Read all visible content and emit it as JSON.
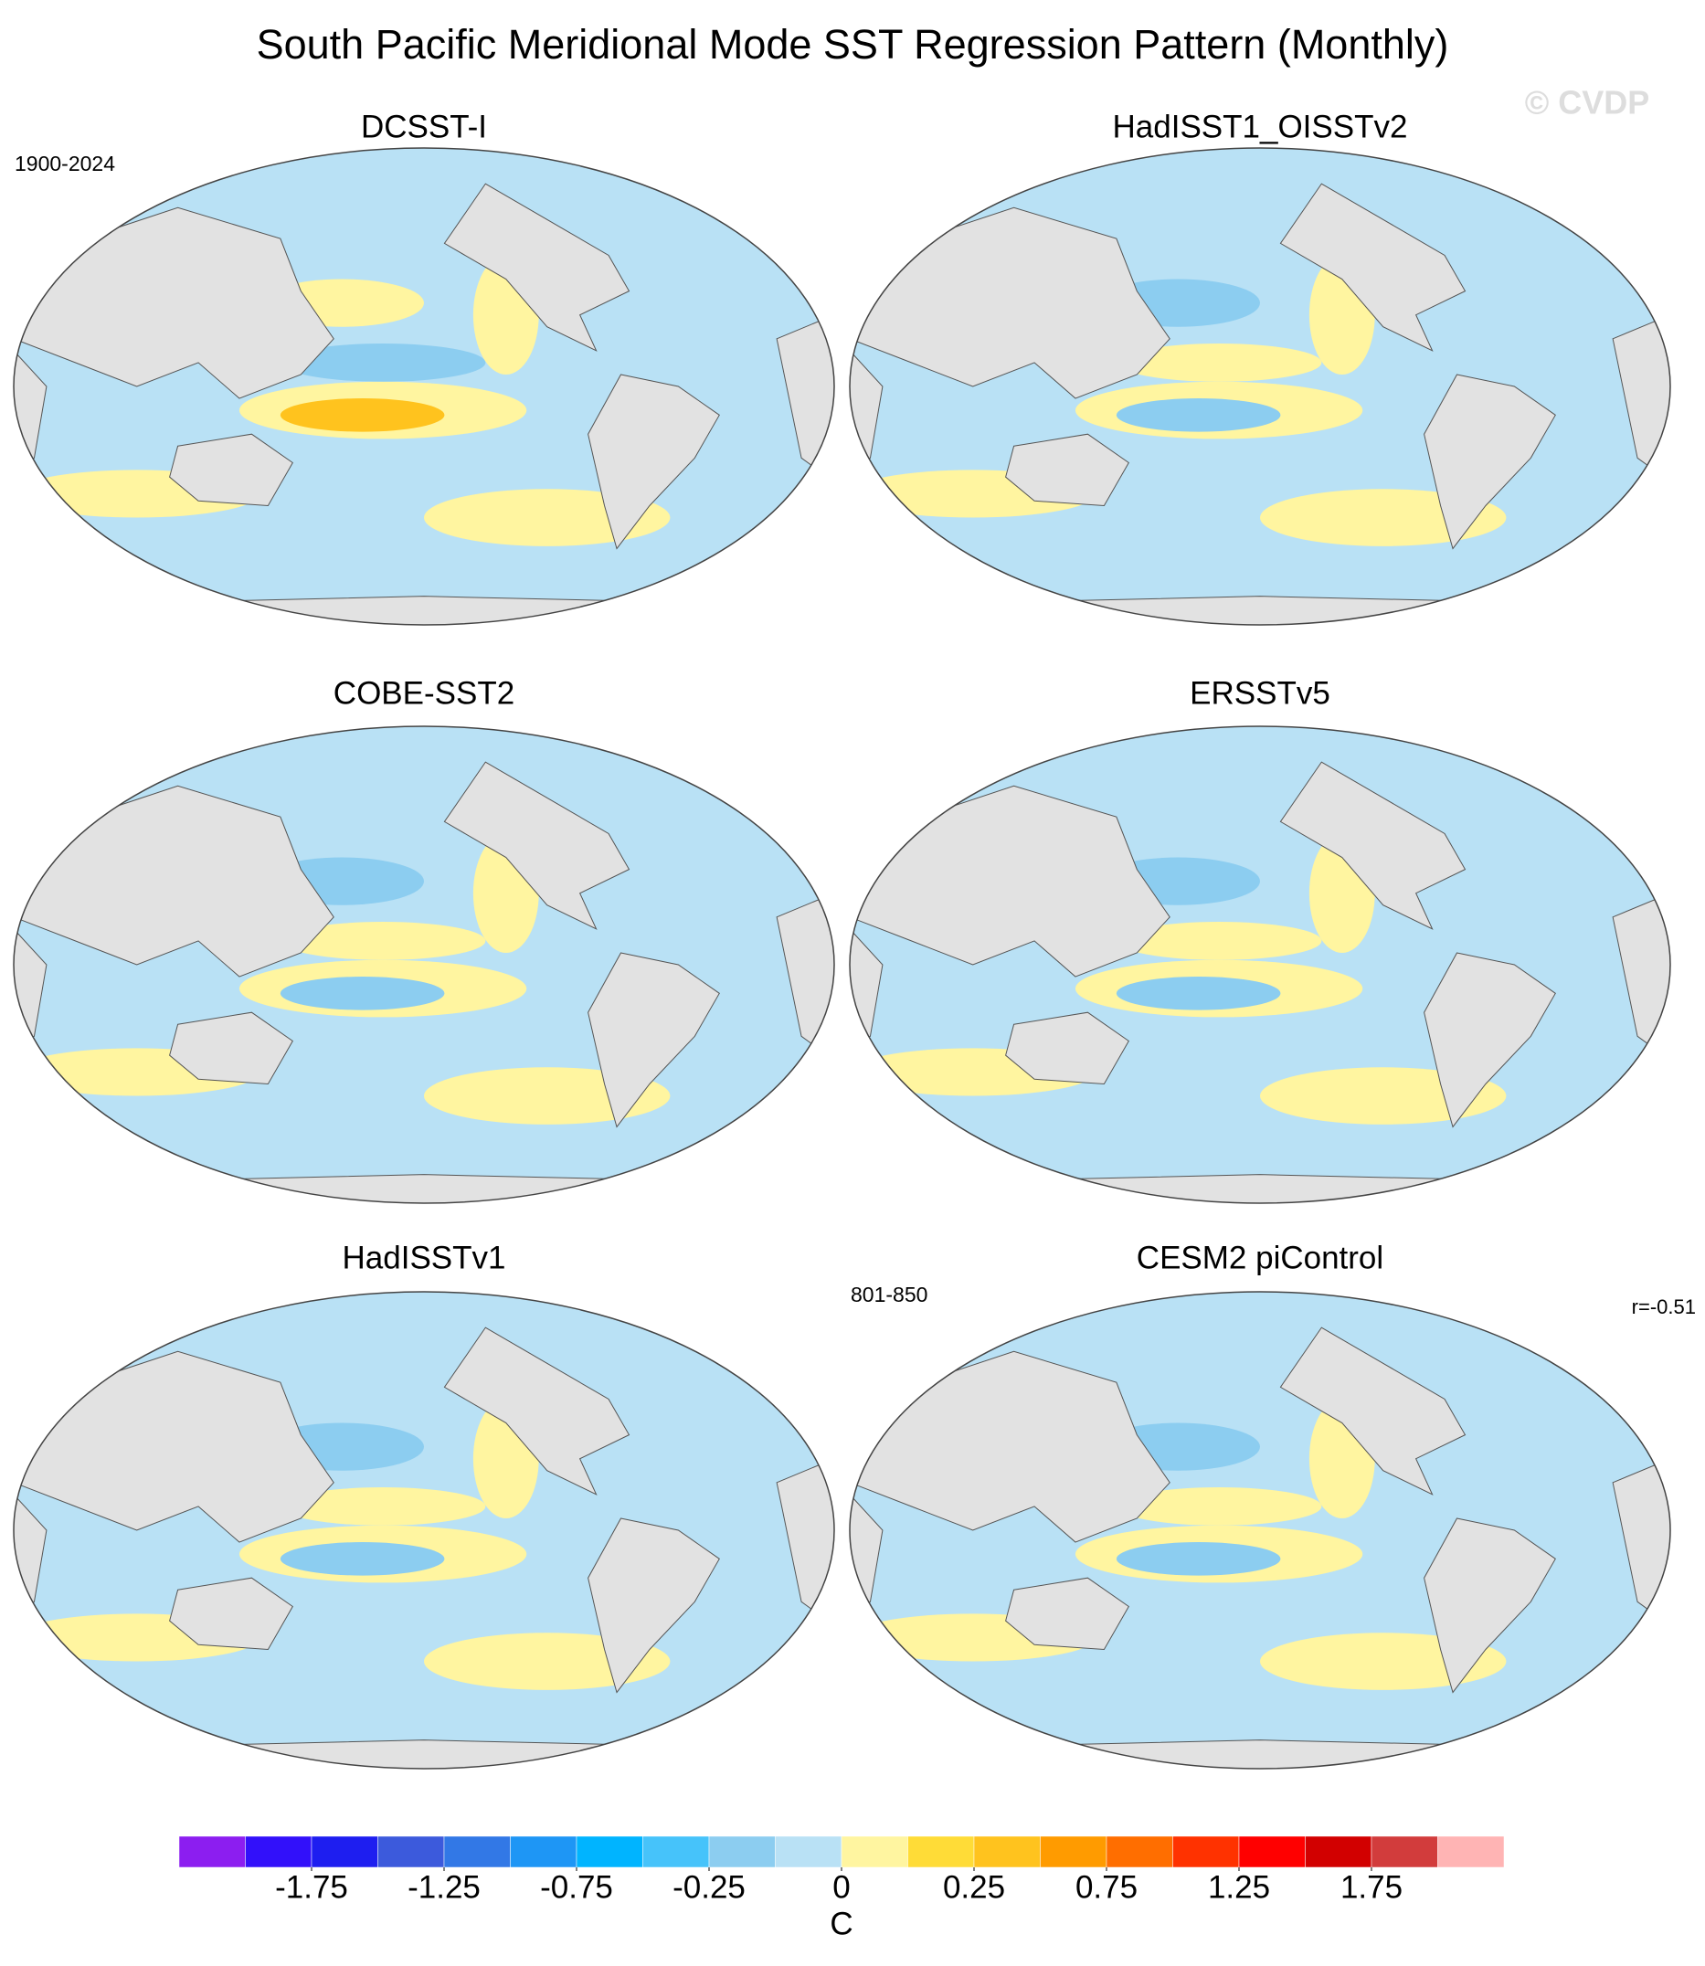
{
  "title": "South Pacific Meridional Mode SST Regression Pattern (Monthly)",
  "watermark": "© CVDP",
  "panels": [
    {
      "title": "DCSST-I",
      "left_note": "1900-2024"
    },
    {
      "title": "HadISST1_OISSTv2"
    },
    {
      "title": "COBE-SST2"
    },
    {
      "title": "ERSSTv5"
    },
    {
      "title": "HadISSTv1"
    },
    {
      "title": "CESM2 piControl",
      "left_note": "801-850",
      "right_note": "r=-0.51"
    }
  ],
  "colorbar": {
    "colors": [
      "#8c1ef0",
      "#3210fa",
      "#1e1ef0",
      "#3c5adc",
      "#3278e6",
      "#1e96f5",
      "#00b4ff",
      "#46c3fa",
      "#8ccdf0",
      "#b9e1f5",
      "#fff5a0",
      "#ffdc37",
      "#ffc31e",
      "#ff9b00",
      "#ff6e00",
      "#ff3200",
      "#ff0000",
      "#d20000",
      "#d23c3c",
      "#ffb4b4"
    ],
    "ticks": [
      -1.75,
      -1.25,
      -0.75,
      -0.25,
      0,
      0.25,
      0.75,
      1.25,
      1.75
    ],
    "unit": "C"
  }
}
